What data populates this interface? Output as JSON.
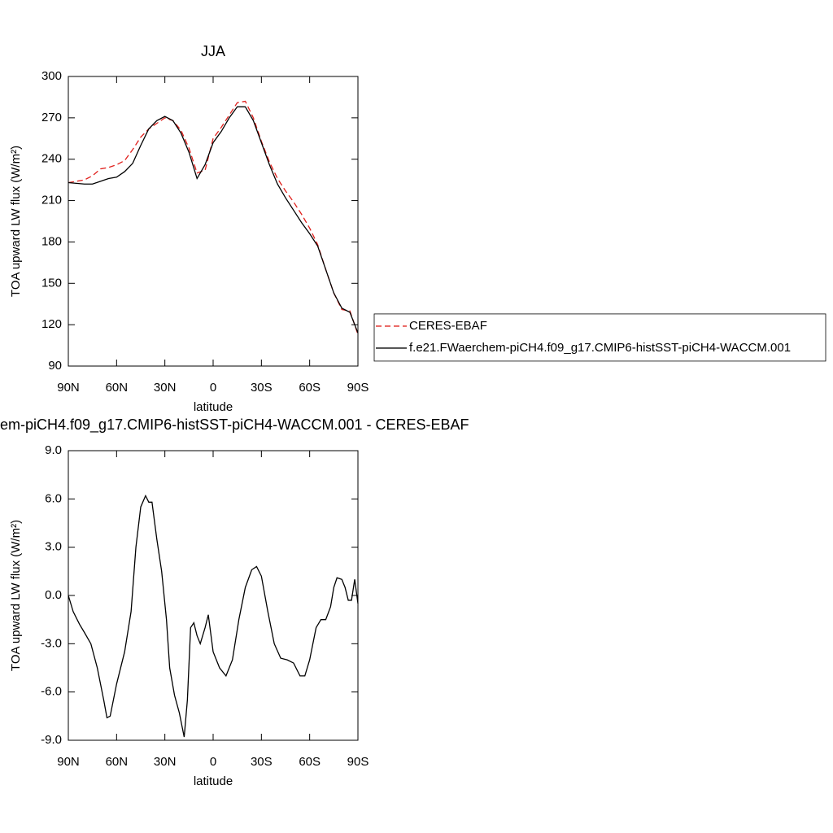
{
  "chart_data": [
    {
      "type": "line",
      "title": "JJA",
      "xlabel": "latitude",
      "ylabel": "TOA upward LW flux (W/m²)",
      "x": [
        90,
        85,
        80,
        75,
        70,
        65,
        60,
        55,
        50,
        45,
        40,
        35,
        30,
        25,
        20,
        15,
        10,
        5,
        0,
        -5,
        -10,
        -15,
        -20,
        -25,
        -30,
        -35,
        -40,
        -45,
        -50,
        -55,
        -60,
        -65,
        -70,
        -75,
        -80,
        -85,
        -90
      ],
      "series": [
        {
          "name": "CERES-EBAF",
          "color": "#e0201c",
          "style": "dashed",
          "values": [
            223,
            224,
            225,
            228,
            233,
            234,
            236,
            239,
            247,
            256,
            262,
            266,
            270,
            268,
            261,
            248,
            230,
            232,
            255,
            263,
            272,
            281,
            282,
            270,
            253,
            238,
            226,
            217,
            209,
            200,
            190,
            178,
            160,
            143,
            131,
            130,
            113
          ]
        },
        {
          "name": "f.e21.FWaerchem-piCH4.f09_g17.CMIP6-histSST-piCH4-WACCM.001",
          "color": "#000000",
          "style": "solid",
          "values": [
            223,
            222.5,
            222,
            222,
            224,
            226,
            227,
            231,
            237,
            250,
            262,
            268,
            271,
            268,
            259,
            245,
            226,
            236,
            252,
            260,
            270,
            278,
            278,
            268,
            252,
            236,
            222,
            212,
            203,
            194,
            186,
            177,
            160,
            143,
            132,
            129,
            114
          ]
        }
      ],
      "xlim": [
        90,
        -90
      ],
      "xticks": [
        {
          "value": 90,
          "label": "90N"
        },
        {
          "value": 60,
          "label": "60N"
        },
        {
          "value": 30,
          "label": "30N"
        },
        0,
        {
          "value": -30,
          "label": "30S"
        },
        {
          "value": -60,
          "label": "60S"
        },
        {
          "value": -90,
          "label": "90S"
        }
      ],
      "ylim": [
        90,
        300
      ],
      "yticks": [
        90,
        120,
        150,
        180,
        210,
        240,
        270,
        300
      ],
      "legend": "outside-right"
    },
    {
      "type": "line",
      "title": "em-piCH4.f09_g17.CMIP6-histSST-piCH4-WACCM.001 - CERES-EBAF",
      "xlabel": "latitude",
      "ylabel": "TOA upward LW flux (W/m²)",
      "x": [
        90,
        87,
        83,
        80,
        76,
        72,
        68,
        66,
        64,
        60,
        55,
        51,
        48,
        45,
        42,
        40,
        38,
        35,
        32,
        29,
        27,
        24,
        21,
        18,
        16,
        14,
        12,
        10,
        8,
        5,
        3,
        0,
        -4,
        -8,
        -12,
        -16,
        -20,
        -24,
        -27,
        -30,
        -34,
        -38,
        -42,
        -46,
        -50,
        -54,
        -57,
        -60,
        -64,
        -67,
        -70,
        -73,
        -75,
        -77,
        -80,
        -82,
        -84,
        -86,
        -88,
        -90
      ],
      "series": [
        {
          "color": "#000000",
          "style": "solid",
          "values": [
            0,
            -1,
            -1.8,
            -2.3,
            -3,
            -4.5,
            -6.5,
            -7.6,
            -7.5,
            -5.5,
            -3.5,
            -1,
            3,
            5.5,
            6.2,
            5.8,
            5.8,
            3.5,
            1.5,
            -1.5,
            -4.5,
            -6.2,
            -7.3,
            -8.8,
            -6.5,
            -2,
            -1.7,
            -2.5,
            -3,
            -2,
            -1.2,
            -3.5,
            -4.5,
            -5,
            -4,
            -1.5,
            0.5,
            1.6,
            1.8,
            1.2,
            -1,
            -3,
            -3.9,
            -4,
            -4.2,
            -5,
            -5,
            -4,
            -2,
            -1.5,
            -1.5,
            -0.7,
            0.5,
            1.1,
            1,
            0.5,
            -0.3,
            -0.3,
            1,
            -0.5
          ]
        }
      ],
      "xlim": [
        90,
        -90
      ],
      "xticks": [
        {
          "value": 90,
          "label": "90N"
        },
        {
          "value": 60,
          "label": "60N"
        },
        {
          "value": 30,
          "label": "30N"
        },
        0,
        {
          "value": -30,
          "label": "30S"
        },
        {
          "value": -60,
          "label": "60S"
        },
        {
          "value": -90,
          "label": "90S"
        }
      ],
      "ylim": [
        -9,
        9
      ],
      "yticks": [
        {
          "value": -9,
          "label": "-9.0"
        },
        {
          "value": -6,
          "label": "-6.0"
        },
        {
          "value": -3,
          "label": "-3.0"
        },
        {
          "value": 0,
          "label": "0.0"
        },
        {
          "value": 3,
          "label": "3.0"
        },
        {
          "value": 6,
          "label": "6.0"
        },
        {
          "value": 9,
          "label": "9.0"
        }
      ]
    }
  ]
}
